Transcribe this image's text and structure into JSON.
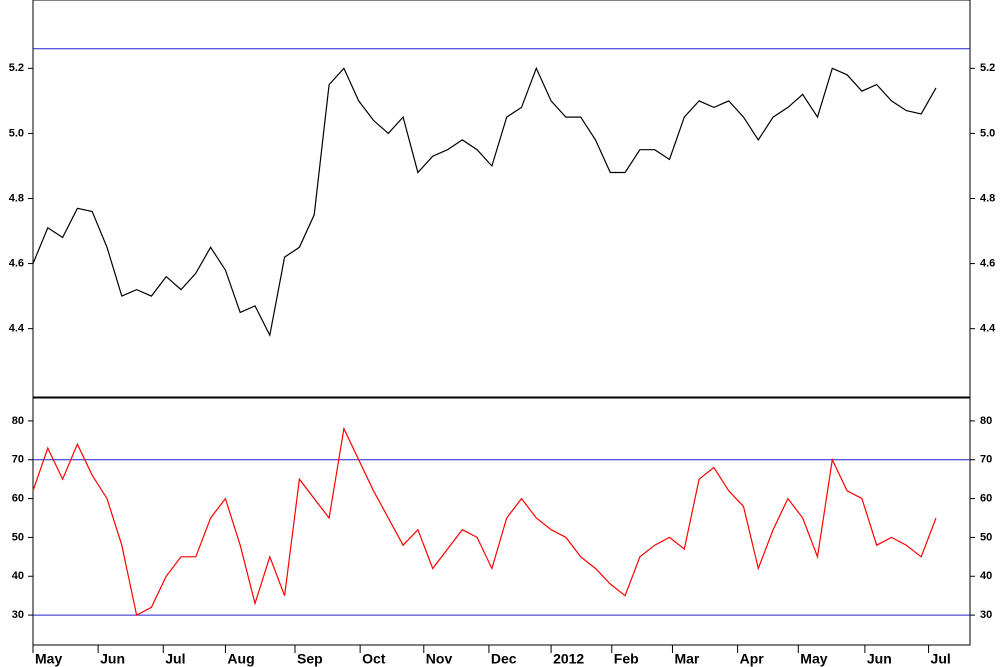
{
  "chart_data": [
    {
      "type": "line",
      "x": [
        0,
        1,
        2,
        3,
        4,
        5,
        6,
        7,
        8,
        9,
        10,
        11,
        12,
        13,
        14,
        15,
        16,
        17,
        18,
        19,
        20,
        21,
        22,
        23,
        24,
        25,
        26,
        27,
        28,
        29,
        30,
        31,
        32,
        33,
        34,
        35,
        36,
        37,
        38,
        39,
        40,
        41,
        42,
        43,
        44,
        45,
        46,
        47,
        48,
        49,
        50,
        51,
        52,
        53,
        54,
        55,
        56,
        57,
        58,
        59,
        60,
        61
      ],
      "series": [
        {
          "color": "#000000",
          "values": [
            4.6,
            4.71,
            4.68,
            4.77,
            4.76,
            4.65,
            4.5,
            4.52,
            4.5,
            4.56,
            4.52,
            4.57,
            4.65,
            4.58,
            4.45,
            4.47,
            4.38,
            4.62,
            4.65,
            4.75,
            5.15,
            5.2,
            5.1,
            5.04,
            5.0,
            5.05,
            4.88,
            4.93,
            4.95,
            4.98,
            4.95,
            4.9,
            5.05,
            5.08,
            5.2,
            5.1,
            5.05,
            5.05,
            4.98,
            4.88,
            4.88,
            4.95,
            4.95,
            4.92,
            5.05,
            5.1,
            5.08,
            5.1,
            5.05,
            4.98,
            5.05,
            5.08,
            5.12,
            5.05,
            5.2,
            5.18,
            5.13,
            5.15,
            5.1,
            5.07,
            5.06,
            5.14
          ]
        }
      ],
      "xlim": [
        0,
        63.3
      ],
      "ylim": [
        4.19,
        5.41
      ],
      "yticks": [
        4.4,
        4.6,
        4.8,
        {
          "value": 5.0,
          "label": "5.0"
        },
        5.2
      ],
      "hlines": [
        5.26
      ],
      "hline_color": "#2020d0"
    },
    {
      "type": "line",
      "x": [
        0,
        1,
        2,
        3,
        4,
        5,
        6,
        7,
        8,
        9,
        10,
        11,
        12,
        13,
        14,
        15,
        16,
        17,
        18,
        19,
        20,
        21,
        22,
        23,
        24,
        25,
        26,
        27,
        28,
        29,
        30,
        31,
        32,
        33,
        34,
        35,
        36,
        37,
        38,
        39,
        40,
        41,
        42,
        43,
        44,
        45,
        46,
        47,
        48,
        49,
        50,
        51,
        52,
        53,
        54,
        55,
        56,
        57,
        58,
        59,
        60,
        61
      ],
      "series": [
        {
          "color": "#ff0000",
          "values": [
            62,
            73,
            65,
            74,
            66,
            60,
            48,
            30,
            32,
            40,
            45,
            45,
            55,
            60,
            48,
            33,
            45,
            35,
            65,
            60,
            55,
            78,
            70,
            62,
            55,
            48,
            52,
            42,
            47,
            52,
            50,
            42,
            55,
            60,
            55,
            52,
            50,
            45,
            42,
            38,
            35,
            45,
            48,
            50,
            47,
            65,
            68,
            62,
            58,
            42,
            52,
            60,
            55,
            45,
            70,
            62,
            60,
            48,
            50,
            48,
            45,
            55
          ]
        }
      ],
      "xlim": [
        0,
        63.3
      ],
      "ylim": [
        22.3,
        85.9
      ],
      "yticks": [
        30,
        40,
        50,
        60,
        70,
        80
      ],
      "hlines": [
        70,
        30
      ],
      "hline_color": "#2020d0",
      "xticks": [
        {
          "value": 0,
          "label": "May"
        },
        {
          "value": 4.4,
          "label": "Jun"
        },
        {
          "value": 8.8,
          "label": "Jul"
        },
        {
          "value": 13.0,
          "label": "Aug"
        },
        {
          "value": 17.7,
          "label": "Sep"
        },
        {
          "value": 22.1,
          "label": "Oct"
        },
        {
          "value": 26.4,
          "label": "Nov"
        },
        {
          "value": 30.8,
          "label": "Dec"
        },
        {
          "value": 35.0,
          "label": "2012"
        },
        {
          "value": 39.1,
          "label": "Feb"
        },
        {
          "value": 43.2,
          "label": "Mar"
        },
        {
          "value": 47.6,
          "label": "Apr"
        },
        {
          "value": 51.7,
          "label": "May"
        },
        {
          "value": 56.2,
          "label": "Jun"
        },
        {
          "value": 60.5,
          "label": "Jul"
        }
      ]
    }
  ]
}
